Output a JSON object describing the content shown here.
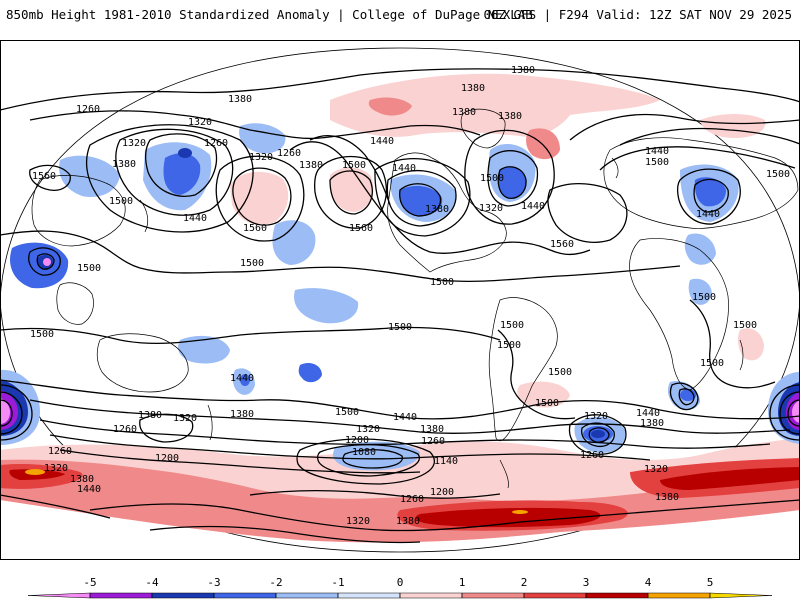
{
  "header": {
    "title": "850mb Height 1981-2010 Standardized Anomaly | College of DuPage NEXLAB",
    "run_info": "06Z GFS | F294 Valid: 12Z SAT NOV 29 2025"
  },
  "colorbar": {
    "ticks": [
      "-5",
      "-4",
      "-3",
      "-2",
      "-1",
      "0",
      "1",
      "2",
      "3",
      "4",
      "5"
    ],
    "colors": [
      "#f58cf5",
      "#9b1bd6",
      "#1a38b0",
      "#3e66e6",
      "#9bbcf5",
      "#d4e2fa",
      "#fbd2d2",
      "#f08a8a",
      "#e34040",
      "#b80000",
      "#f5a300",
      "#f5d800"
    ]
  },
  "contour_labels": [
    {
      "name": "label-1380-north",
      "text": "1380"
    },
    {
      "name": "label-1260-nw",
      "text": "1260"
    },
    {
      "name": "label-1380-npac",
      "text": "1380"
    },
    {
      "name": "label-1320-a",
      "text": "1320"
    },
    {
      "name": "label-1320-b",
      "text": "1320"
    },
    {
      "name": "label-1260-b",
      "text": "1260"
    },
    {
      "name": "label-1320-c",
      "text": "1320"
    },
    {
      "name": "label-1260-c",
      "text": "1260"
    },
    {
      "name": "label-1380-b",
      "text": "1380"
    },
    {
      "name": "label-1380-c",
      "text": "1380"
    },
    {
      "name": "label-1380-d",
      "text": "1380"
    },
    {
      "name": "label-1500-na",
      "text": "1500"
    },
    {
      "name": "label-1440-na",
      "text": "1440"
    },
    {
      "name": "label-1380-greenland",
      "text": "1380"
    },
    {
      "name": "label-1380-eur",
      "text": "1380"
    },
    {
      "name": "label-1440-eur",
      "text": "1440"
    },
    {
      "name": "label-1500-eur",
      "text": "1500"
    },
    {
      "name": "label-1500-far-e",
      "text": "1500"
    },
    {
      "name": "label-1560-asia",
      "text": "1560"
    },
    {
      "name": "label-1500-asia",
      "text": "1500"
    },
    {
      "name": "label-1440-asia",
      "text": "1440"
    },
    {
      "name": "label-1560-pac",
      "text": "1560"
    },
    {
      "name": "label-1560-pac2",
      "text": "1560"
    },
    {
      "name": "label-1500-seasia",
      "text": "1500"
    },
    {
      "name": "label-1440-ecan",
      "text": "1440"
    },
    {
      "name": "label-1500-ecan",
      "text": "1500"
    },
    {
      "name": "label-1380-us",
      "text": "1380"
    },
    {
      "name": "label-1440-us",
      "text": "1440"
    },
    {
      "name": "label-1320-us",
      "text": "1320"
    },
    {
      "name": "label-1560-atl",
      "text": "1560"
    },
    {
      "name": "label-1440-mideast",
      "text": "1440"
    },
    {
      "name": "label-1500-pac-mid",
      "text": "1500"
    },
    {
      "name": "label-1500-natl",
      "text": "1500"
    },
    {
      "name": "label-1500-wpac",
      "text": "1500"
    },
    {
      "name": "label-1500-spac",
      "text": "1500"
    },
    {
      "name": "label-1500-sam-a",
      "text": "1500"
    },
    {
      "name": "label-1500-sam-b",
      "text": "1500"
    },
    {
      "name": "label-1500-sam-c",
      "text": "1500"
    },
    {
      "name": "label-1500-afr-a",
      "text": "1500"
    },
    {
      "name": "label-1500-afr-b",
      "text": "1500"
    },
    {
      "name": "label-1500-afr-c",
      "text": "1500"
    },
    {
      "name": "label-1440-aus",
      "text": "1440"
    },
    {
      "name": "label-1380-aus",
      "text": "1380"
    },
    {
      "name": "label-1380-so-a",
      "text": "1380"
    },
    {
      "name": "label-1320-so-a",
      "text": "1320"
    },
    {
      "name": "label-1260-so-a",
      "text": "1260"
    },
    {
      "name": "label-1200-so-a",
      "text": "1200"
    },
    {
      "name": "label-1260-so-w",
      "text": "1260"
    },
    {
      "name": "label-1320-so-w",
      "text": "1320"
    },
    {
      "name": "label-1380-so-w",
      "text": "1380"
    },
    {
      "name": "label-1440-so-w",
      "text": "1440"
    },
    {
      "name": "label-1500-so-mid",
      "text": "1500"
    },
    {
      "name": "label-1440-so-mid",
      "text": "1440"
    },
    {
      "name": "label-1380-so-mid",
      "text": "1380"
    },
    {
      "name": "label-1320-so-mid",
      "text": "1320"
    },
    {
      "name": "label-1260-so-mid",
      "text": "1260"
    },
    {
      "name": "label-1200-so-mid",
      "text": "1200"
    },
    {
      "name": "label-1080-so-mid",
      "text": "1080"
    },
    {
      "name": "label-1140-so-mid",
      "text": "1140"
    },
    {
      "name": "label-1200-so-mid2",
      "text": "1200"
    },
    {
      "name": "label-1260-so-mid2",
      "text": "1260"
    },
    {
      "name": "label-1320-so-mid2",
      "text": "1320"
    },
    {
      "name": "label-1380-so-mid2",
      "text": "1380"
    },
    {
      "name": "label-1320-so-e",
      "text": "1320"
    },
    {
      "name": "label-1260-so-e",
      "text": "1260"
    },
    {
      "name": "label-1440-so-e",
      "text": "1440"
    },
    {
      "name": "label-1380-so-e",
      "text": "1380"
    },
    {
      "name": "label-1320-so-e2",
      "text": "1320"
    },
    {
      "name": "label-1380-so-e2",
      "text": "1380"
    },
    {
      "name": "label-1500-so-atl",
      "text": "1500"
    }
  ]
}
